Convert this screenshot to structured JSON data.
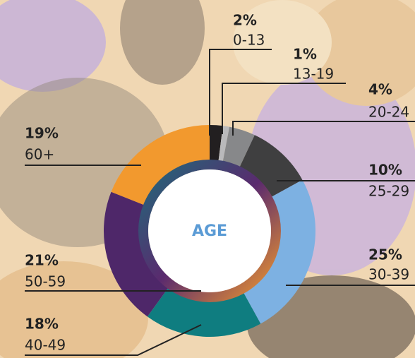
{
  "chart_data": {
    "type": "pie",
    "center_label": "AGE",
    "categories": [
      "0-13",
      "13-19",
      "20-24",
      "25-29",
      "30-39",
      "40-49",
      "50-59",
      "60+"
    ],
    "values": [
      2,
      1,
      4,
      10,
      25,
      18,
      21,
      19
    ],
    "value_labels": [
      "2%",
      "1%",
      "4%",
      "10%",
      "25%",
      "18%",
      "21%",
      "19%"
    ],
    "colors": [
      "#221f20",
      "#b9b9bb",
      "#87888a",
      "#3f3f40",
      "#7db1e2",
      "#0f7d80",
      "#4e2769",
      "#f2992e"
    ]
  }
}
